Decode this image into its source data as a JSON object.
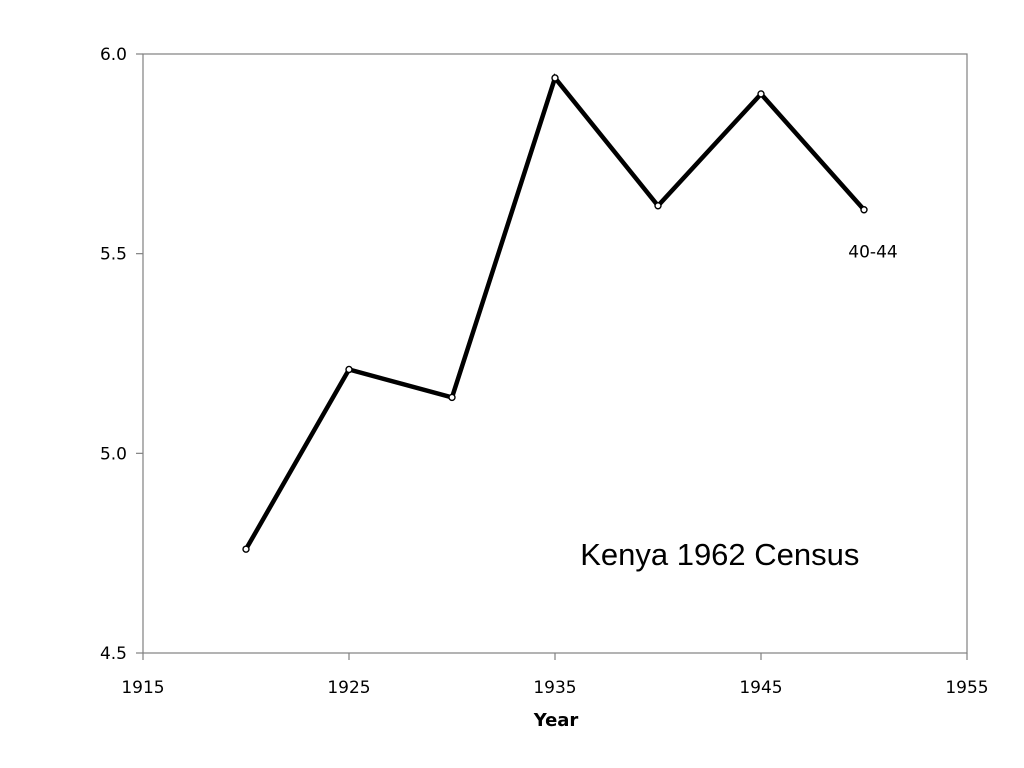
{
  "chart_data": {
    "type": "line",
    "title": "",
    "xlabel": "Year",
    "ylabel": "",
    "xlim": [
      1915,
      1955
    ],
    "ylim": [
      4.5,
      6.0
    ],
    "x_ticks": [
      "1915",
      "1925",
      "1935",
      "1945",
      "1955"
    ],
    "y_ticks": [
      "4.5",
      "5.0",
      "5.5",
      "6.0"
    ],
    "grid": false,
    "legend": "none",
    "series": [
      {
        "x": [
          1920,
          1925,
          1930,
          1935,
          1940,
          1945,
          1950
        ],
        "y": [
          4.76,
          5.21,
          5.14,
          5.94,
          5.62,
          5.9,
          5.61
        ],
        "color": "#000000",
        "markers": "open-circle"
      }
    ],
    "annotations": [
      {
        "text": "40-44",
        "x": 1950,
        "y": 5.49
      },
      {
        "text": "Kenya 1962 Census",
        "x": 1943,
        "y": 4.72
      }
    ]
  }
}
